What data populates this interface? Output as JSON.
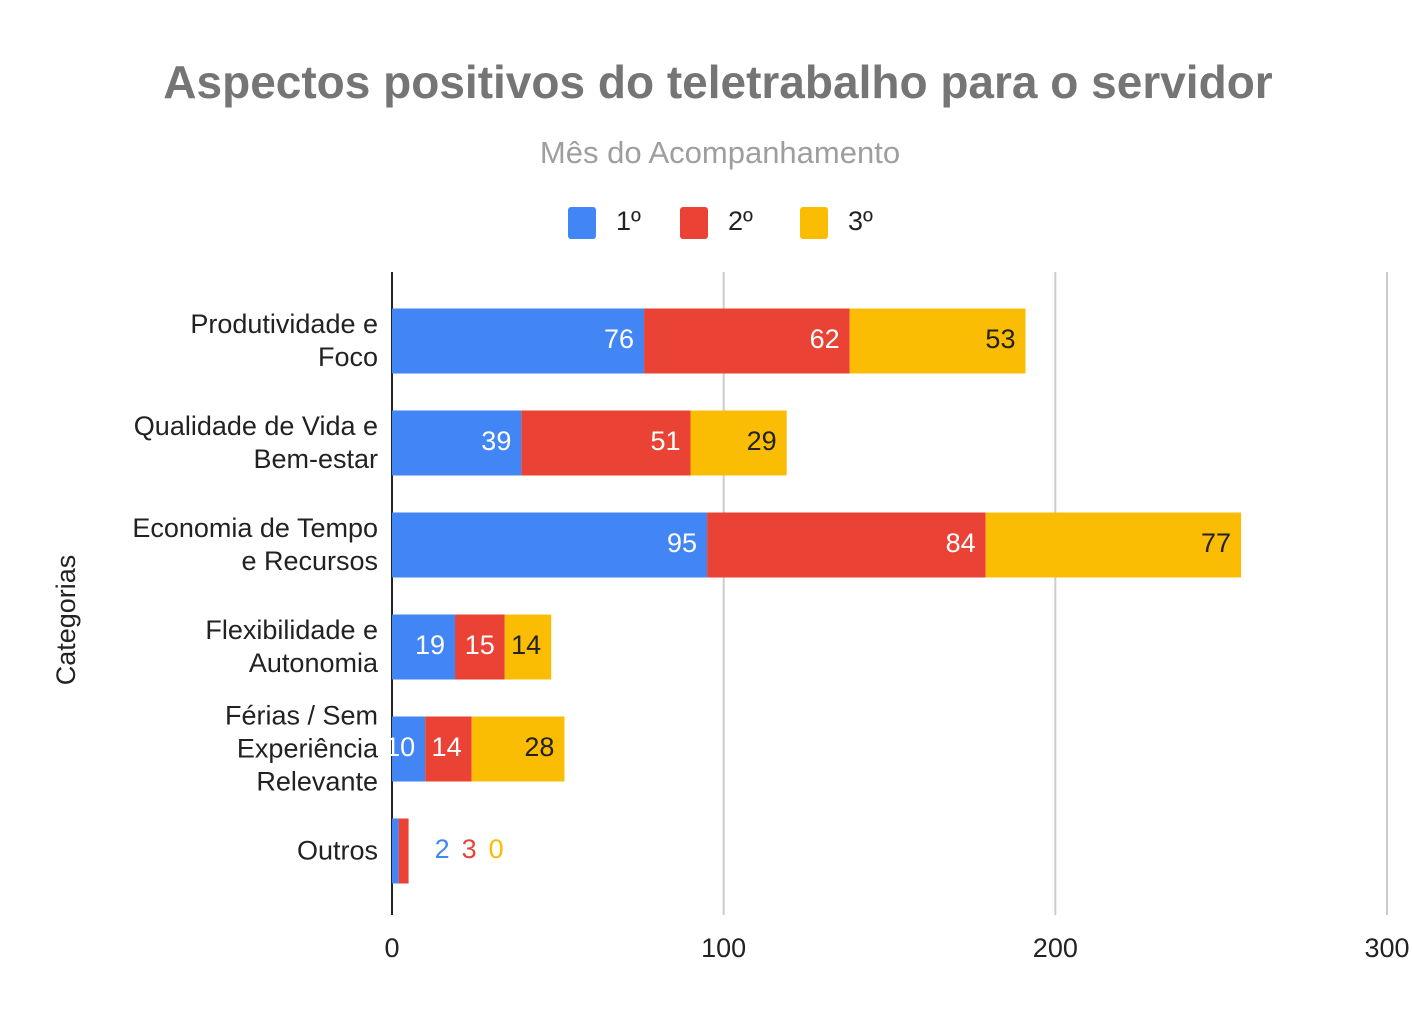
{
  "chart_data": {
    "type": "bar",
    "orientation": "horizontal",
    "stacked": true,
    "title": "Aspectos positivos do teletrabalho para o servidor",
    "legend_title": "Mês do Acompanhamento",
    "y_label": "Categorias",
    "categories": [
      "Produtividade e Foco",
      "Qualidade de Vida e Bem-estar",
      "Economia de Tempo e Recursos",
      "Flexibilidade e Autonomia",
      "Férias / Sem Experiência Relevante",
      "Outros"
    ],
    "series": [
      {
        "name": "1º",
        "color": "#4285f4",
        "values": [
          76,
          39,
          95,
          19,
          10,
          2
        ]
      },
      {
        "name": "2º",
        "color": "#ea4335",
        "values": [
          62,
          51,
          84,
          15,
          14,
          3
        ]
      },
      {
        "name": "3º",
        "color": "#fbbc04",
        "values": [
          53,
          29,
          77,
          14,
          28,
          0
        ]
      }
    ],
    "xlim": [
      0,
      300
    ],
    "xticks": [
      0,
      100,
      200,
      300
    ],
    "grid": true,
    "legend": "top"
  }
}
